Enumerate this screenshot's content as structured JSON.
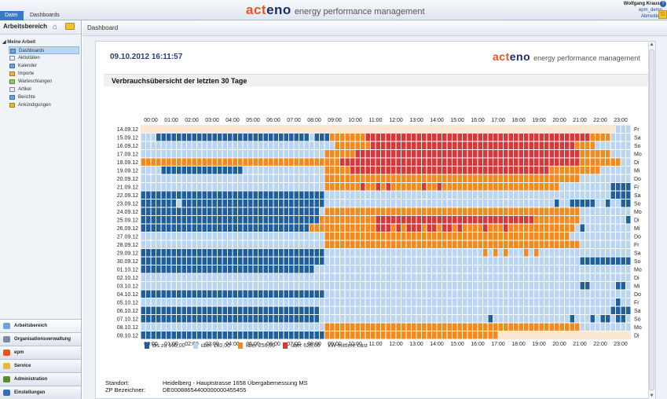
{
  "window": {
    "tabs": [
      "Datei",
      "Dashboards"
    ],
    "brand_name_a": "act",
    "brand_name_b": "eno",
    "brand_tagline": "energy performance management",
    "user_name": "Wolfgang Krauss",
    "user_account": "epm_demo",
    "logout_label": "Abmelden"
  },
  "sidebar": {
    "title": "Arbeitsbereich",
    "section": "Meine Arbeit",
    "items": [
      "Dashboards",
      "Aktivitäten",
      "Kalender",
      "Importe",
      "Warteschlangen",
      "Artikel",
      "Berichte",
      "Ankündigungen"
    ],
    "selected": 0,
    "bottom": [
      "Arbeitsbereich",
      "Organisationsverwaltung",
      "epm",
      "Service",
      "Administration",
      "Einstellungen"
    ]
  },
  "main": {
    "header": "Dashboard",
    "report_datetime": "09.10.2012 16:11:57",
    "report_title": "Verbrauchsübersicht der letzten 30 Tage"
  },
  "chart_data": {
    "type": "heatmap",
    "title": "Verbrauchsübersicht der letzten 30 Tage",
    "hours": [
      "00:00",
      "01:00",
      "02:00",
      "03:00",
      "04:00",
      "05:00",
      "06:00",
      "07:00",
      "08:00",
      "09:00",
      "10:00",
      "11:00",
      "12:00",
      "13:00",
      "14:00",
      "15:00",
      "16:00",
      "17:00",
      "18:00",
      "19:00",
      "20:00",
      "21:00",
      "22:00",
      "23:00"
    ],
    "dates": [
      "14.09.12",
      "15.09.12",
      "16.09.12",
      "17.09.12",
      "18.09.12",
      "19.09.12",
      "20.09.12",
      "21.09.12",
      "22.09.12",
      "23.09.12",
      "24.09.12",
      "25.09.12",
      "26.09.12",
      "27.09.12",
      "28.09.12",
      "29.09.12",
      "30.09.12",
      "01.10.12",
      "02.10.12",
      "03.10.12",
      "04.10.12",
      "05.10.12",
      "06.10.12",
      "07.10.12",
      "08.10.12",
      "09.10.12"
    ],
    "weekdays": [
      "Fr",
      "Sa",
      "So",
      "Mo",
      "Di",
      "Mi",
      "Do",
      "Fr",
      "Sa",
      "So",
      "Mo",
      "Di",
      "Mi",
      "Do",
      "Fr",
      "Sa",
      "So",
      "Mo",
      "Di",
      "Mi",
      "Do",
      "Fr",
      "Sa",
      "So",
      "Mo",
      "Di"
    ],
    "slots_per_hour": 4,
    "legend": [
      "bis zu 160,00",
      "über 160,00",
      "über 256,00",
      "über 628,00"
    ],
    "unit_label": "kW mittlere Last",
    "level_colors": [
      "#fbe8d2",
      "#1f5f9b",
      "#b9d5f2",
      "#f48a1c",
      "#d6383b"
    ],
    "levels_note": "0 = no data, 1..4 = legend classes",
    "rows": [
      "000000000000000000000000000000000000000000000000000000000000000000000000000000000000000000000222",
      "222111111111111111111111111111111211133333334444444444444444444444444444444444444444444433332222",
      "222222222222222222222222222222222222223333333444444444444444444444444444444444444444433332222222",
      "222222222222222222222222222222222222333333444444444444444444444444444444444444444444443333332222",
      "333333333333333333333333333333333333333444444444444444444444444444444444444444444444443333333322",
      "222211111111111111112222222222222222333334444444444444444444444444444444444444443333333333222222",
      "222222222222222222222222222222222222333333333333333333333333333333333333333333333333332222222222",
      "222222222222222222222222222222222222333333343343433333343343333333333333333333333322222222221111",
      "111111111111111111111111111111111111222222222222222222222222222222222222222222222222222222221111",
      "111111121111111111111111111111111111222222222222222222222222222222222222222222222122111112212211",
      "111111111111111111111111111111111112333333333333333333333333333333333333333333333333332222222222",
      "111111111111111111111111111111111113333333333344444444444444444444444444444443333333332222222221",
      "111111111111111111111111111111111333333333333344434344434434434333343334333333333333321222222222",
      "222222222222222222222222222222222222333333333333333333333333333333333333333333333333222222222222",
      "222222222222222222222222222222222222333333333333333333333333333333333333333333333333332222222222",
      "111111111111111111111111111111111111222222222222222222222222222222232323222323222222222222222222",
      "111111111111111111111111111111111111222222222222222222222222222222222222222222222222221111111111",
      "111111111111111111111111111111111122222222222222222222222222222222222222222222222222222222222222",
      "222222222222222222222222222222222222222222222222222222222222222222222222222222222222222222222222",
      "222222222222222222222222222222222222222222222222222222222222222222222222222222222222221122222112",
      "111111111111111111111111111111111111222222222222222222222222222222222222222222222222222222222222",
      "222222222222222222222222222222222222222222222222222222222222222222222222222222222222222222222122",
      "111111111111111111111111111111111112222222222222222222222222222222222222222222222222222222221111",
      "111111111111111111111111111111111112222222222222222222222222222222221222222222222222122212112112",
      "222222222222222222222222222222222222333333333333333333333333333333333333333333333333332222222222",
      "111111111111111111111111111111111111333333333333333333333333333333333300000000000000000000000000"
    ]
  },
  "info": {
    "standort_label": "Standort:",
    "standort_value": "Heidelberg - Hauptstrasse 1658 Übergabemessung MS",
    "zp_label": "ZP Bezeichner:",
    "zp_value": "DE00088654400000000455455"
  }
}
